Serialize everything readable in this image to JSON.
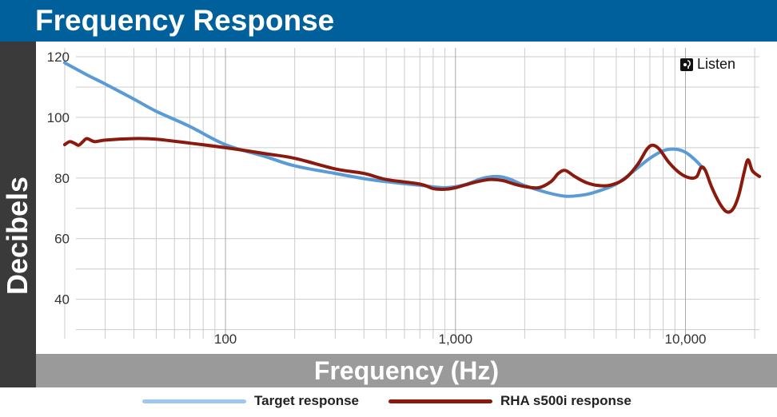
{
  "title": "Frequency Response",
  "brand": {
    "name": "Listen",
    "icon": "listen-logo-icon"
  },
  "colors": {
    "header": "#00609c",
    "ylabel_bg": "#3a3a3a",
    "xlabel_bg": "#9a9a9a",
    "grid": "#cccccc",
    "target": "#5b9bd5",
    "rha": "#8b1a0e"
  },
  "chart_data": {
    "type": "line",
    "title": "Frequency Response",
    "xlabel": "Frequency (Hz)",
    "ylabel": "Decibels",
    "xscale": "log",
    "xlim": [
      15,
      25000
    ],
    "ylim": [
      22,
      125
    ],
    "xticks": [
      100,
      1000,
      10000
    ],
    "xtick_labels": [
      "100",
      "1,000",
      "10,000"
    ],
    "yticks": [
      40,
      60,
      80,
      100,
      120
    ],
    "ytick_labels": [
      "40",
      "60",
      "80",
      "100",
      "120"
    ],
    "grid": true,
    "legend_position": "bottom",
    "series": [
      {
        "name": "Target response",
        "color": "#5b9bd5",
        "points": [
          [
            20,
            118
          ],
          [
            25,
            114
          ],
          [
            30,
            111
          ],
          [
            40,
            106
          ],
          [
            50,
            102
          ],
          [
            70,
            97
          ],
          [
            100,
            91
          ],
          [
            150,
            87
          ],
          [
            200,
            84
          ],
          [
            300,
            81.5
          ],
          [
            400,
            79.8
          ],
          [
            500,
            78.8
          ],
          [
            700,
            77.6
          ],
          [
            900,
            76.8
          ],
          [
            1100,
            77.8
          ],
          [
            1300,
            79.8
          ],
          [
            1500,
            80.5
          ],
          [
            1700,
            79.8
          ],
          [
            2000,
            77.5
          ],
          [
            2500,
            75.2
          ],
          [
            3000,
            74
          ],
          [
            3500,
            74.3
          ],
          [
            4000,
            75.2
          ],
          [
            5000,
            78
          ],
          [
            6000,
            82.5
          ],
          [
            7000,
            86.5
          ],
          [
            8000,
            89
          ],
          [
            9000,
            89.5
          ],
          [
            10000,
            88.5
          ],
          [
            11000,
            86
          ],
          [
            12000,
            83
          ]
        ]
      },
      {
        "name": "RHA s500i response",
        "color": "#8b1a0e",
        "points": [
          [
            20,
            91
          ],
          [
            21,
            92
          ],
          [
            22,
            91.5
          ],
          [
            23,
            90.8
          ],
          [
            24,
            92
          ],
          [
            25,
            93
          ],
          [
            27,
            92
          ],
          [
            30,
            92.5
          ],
          [
            40,
            93
          ],
          [
            50,
            92.8
          ],
          [
            70,
            91.5
          ],
          [
            100,
            90
          ],
          [
            150,
            88
          ],
          [
            200,
            86.5
          ],
          [
            300,
            83
          ],
          [
            400,
            81.5
          ],
          [
            500,
            79.5
          ],
          [
            700,
            78
          ],
          [
            800,
            76.5
          ],
          [
            900,
            76.3
          ],
          [
            1000,
            76.8
          ],
          [
            1200,
            78.5
          ],
          [
            1400,
            79.5
          ],
          [
            1600,
            79.2
          ],
          [
            1800,
            78
          ],
          [
            2000,
            77.2
          ],
          [
            2300,
            76.8
          ],
          [
            2600,
            78.8
          ],
          [
            2800,
            81.5
          ],
          [
            3000,
            82.5
          ],
          [
            3300,
            80.5
          ],
          [
            3700,
            78.5
          ],
          [
            4200,
            77.5
          ],
          [
            4800,
            77.8
          ],
          [
            5500,
            80
          ],
          [
            6200,
            84.5
          ],
          [
            6800,
            89.5
          ],
          [
            7200,
            90.8
          ],
          [
            7700,
            89.5
          ],
          [
            8500,
            85
          ],
          [
            9500,
            81.5
          ],
          [
            10500,
            80
          ],
          [
            11200,
            80.5
          ],
          [
            11700,
            83.5
          ],
          [
            12200,
            82.5
          ],
          [
            13000,
            77
          ],
          [
            14000,
            72
          ],
          [
            15000,
            69
          ],
          [
            16000,
            69.5
          ],
          [
            17000,
            74
          ],
          [
            18000,
            82
          ],
          [
            18700,
            86
          ],
          [
            19500,
            82.5
          ],
          [
            20500,
            81
          ],
          [
            21000,
            80.5
          ]
        ]
      }
    ]
  }
}
